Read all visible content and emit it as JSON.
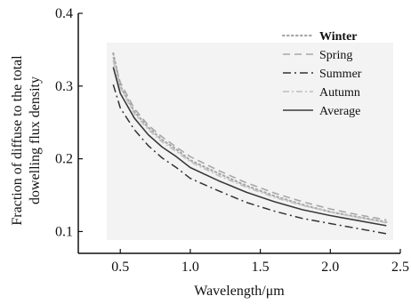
{
  "chart_data": {
    "type": "line",
    "title": "",
    "xlabel": "Wavelength/μm",
    "ylabel_lines": [
      "Fraction of diffuse to the total",
      "dowelling flux density"
    ],
    "xlim": [
      0.2,
      2.5
    ],
    "ylim": [
      0.07,
      0.4
    ],
    "x_ticks": [
      0.5,
      1.0,
      1.5,
      2.0,
      2.5
    ],
    "x_tick_labels": [
      "0.5",
      "1.0",
      "1.5",
      "2.0",
      "2.5"
    ],
    "y_ticks": [
      0.1,
      0.2,
      0.3,
      0.4
    ],
    "y_tick_labels": [
      "0.1",
      "0.2",
      "0.3",
      "0.4"
    ],
    "grid": false,
    "legend_position": "top-right",
    "series": [
      {
        "name": "Winter",
        "style": "dotted",
        "color": "#a8a8a8",
        "x": [
          0.45,
          0.5,
          0.6,
          0.7,
          0.8,
          0.9,
          1.0,
          1.2,
          1.4,
          1.6,
          1.8,
          2.0,
          2.2,
          2.4
        ],
        "y": [
          0.345,
          0.3,
          0.265,
          0.243,
          0.226,
          0.213,
          0.198,
          0.18,
          0.163,
          0.149,
          0.137,
          0.127,
          0.12,
          0.113
        ]
      },
      {
        "name": "Spring",
        "style": "dashed",
        "color": "#a8a8a8",
        "x": [
          0.45,
          0.5,
          0.6,
          0.7,
          0.8,
          0.9,
          1.0,
          1.2,
          1.4,
          1.6,
          1.8,
          2.0,
          2.2,
          2.4
        ],
        "y": [
          0.34,
          0.305,
          0.269,
          0.246,
          0.23,
          0.216,
          0.203,
          0.184,
          0.167,
          0.153,
          0.141,
          0.131,
          0.123,
          0.116
        ]
      },
      {
        "name": "Summer",
        "style": "dashdot",
        "color": "#333333",
        "x": [
          0.45,
          0.5,
          0.6,
          0.7,
          0.8,
          0.9,
          1.0,
          1.2,
          1.4,
          1.6,
          1.8,
          2.0,
          2.2,
          2.4
        ],
        "y": [
          0.302,
          0.27,
          0.24,
          0.218,
          0.201,
          0.188,
          0.173,
          0.156,
          0.14,
          0.128,
          0.118,
          0.111,
          0.104,
          0.097
        ]
      },
      {
        "name": "Autumn",
        "style": "dashdot-light",
        "color": "#c4c4c4",
        "x": [
          0.45,
          0.5,
          0.6,
          0.7,
          0.8,
          0.9,
          1.0,
          1.2,
          1.4,
          1.6,
          1.8,
          2.0,
          2.2,
          2.4
        ],
        "y": [
          0.335,
          0.298,
          0.262,
          0.24,
          0.223,
          0.21,
          0.196,
          0.177,
          0.161,
          0.147,
          0.136,
          0.127,
          0.119,
          0.112
        ]
      },
      {
        "name": "Average",
        "style": "solid",
        "color": "#3a3a3a",
        "x": [
          0.45,
          0.5,
          0.6,
          0.7,
          0.8,
          0.9,
          1.0,
          1.2,
          1.4,
          1.6,
          1.8,
          2.0,
          2.2,
          2.4
        ],
        "y": [
          0.326,
          0.29,
          0.256,
          0.233,
          0.216,
          0.203,
          0.188,
          0.17,
          0.154,
          0.141,
          0.13,
          0.122,
          0.115,
          0.108
        ]
      }
    ]
  }
}
